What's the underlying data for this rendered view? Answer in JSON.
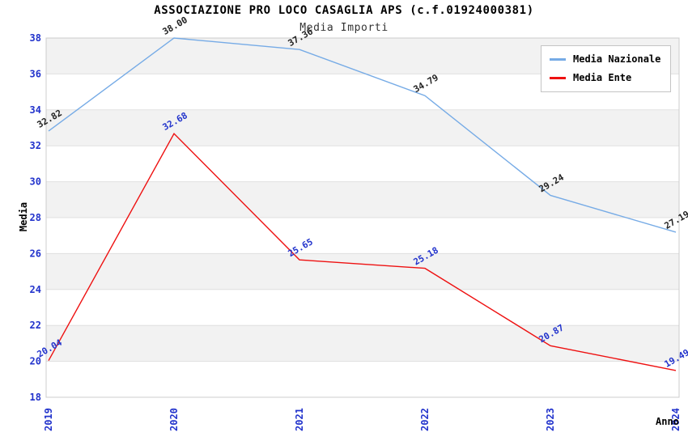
{
  "chart_data": {
    "type": "line",
    "title": "ASSOCIAZIONE PRO LOCO CASAGLIA APS (c.f.01924000381)",
    "subtitle": "Media Importi",
    "xlabel": "Anno",
    "ylabel": "Media",
    "x": [
      "2019",
      "2020",
      "2021",
      "2022",
      "2023",
      "2024"
    ],
    "ylim": [
      18,
      38
    ],
    "ytick_step": 2,
    "grid": "horizontal-bands",
    "legend_position": "top-right",
    "series": [
      {
        "name": "Media Nazionale",
        "color": "#76abe6",
        "label_color": "#222222",
        "values": [
          32.82,
          38.0,
          37.36,
          34.79,
          29.24,
          27.19
        ]
      },
      {
        "name": "Media Ente",
        "color": "#ee1111",
        "label_color": "#2233cc",
        "values": [
          20.04,
          32.68,
          25.65,
          25.18,
          20.87,
          19.49
        ]
      }
    ],
    "colors": {
      "tick_label": "#2233cc",
      "band": "#f2f2f2",
      "gridline": "#e0e0e0",
      "plot_border": "#cccccc",
      "title": "#000000",
      "subtitle": "#333333",
      "axis_label": "#000000",
      "legend_border": "#c4c4c4",
      "legend_bg": "#ffffff"
    }
  }
}
